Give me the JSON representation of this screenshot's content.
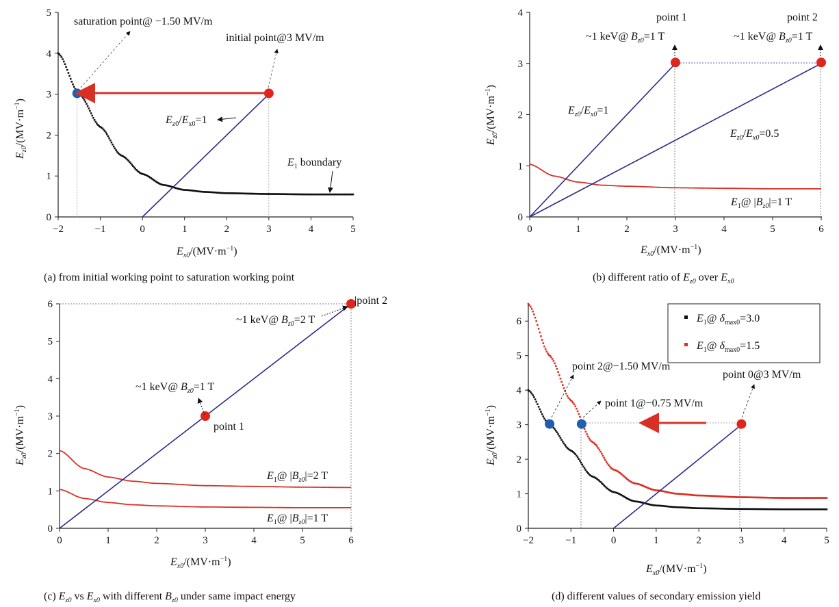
{
  "colors": {
    "axis": "#222222",
    "black_curve": "#111111",
    "red_curve": "#d93025",
    "blue_line": "#2a2a8c",
    "red_marker": "#e0261c",
    "blue_marker": "#1f5fb0",
    "guide": "#8a8aa8"
  },
  "panels": {
    "a": {
      "caption": "(a) from initial working point to saturation working point",
      "xlabel_sym": "E",
      "xlabel_sub": "x0",
      "xlabel_unit": "/(MV·m",
      "ylabel_sym": "E",
      "ylabel_sub": "z0",
      "ylabel_unit": "/(MV·m",
      "ann_saturation": "saturation point@ −1.50 MV/m",
      "ann_initial": "initial point@3 MV/m",
      "ann_ratio_sym1": "E",
      "ann_ratio_sub1": "z0",
      "ann_ratio_slash": "/",
      "ann_ratio_sym2": "E",
      "ann_ratio_sub2": "x0",
      "ann_ratio_eq": "=1",
      "ann_boundary_sym": "E",
      "ann_boundary_sub": "1",
      "ann_boundary_text": " boundary"
    },
    "b": {
      "caption_pre": "(b) different ratio of ",
      "caption_sym1": "E",
      "caption_sub1": "z0",
      "caption_mid": " over ",
      "caption_sym2": "E",
      "caption_sub2": "x0",
      "xlabel_sym": "E",
      "xlabel_sub": "x0",
      "xlabel_unit": "/(MV·m",
      "ylabel_sym": "E",
      "ylabel_sub": "z0",
      "ylabel_unit": "/(MV·m",
      "point1_title": "point 1",
      "point2_title": "point 2",
      "point_sub_pre": "~1 keV@ ",
      "point_sub_sym": "B",
      "point_sub_sub": "z0",
      "point_sub_post": "=1 T",
      "ratio1_eq": "=1",
      "ratio05_eq": "=0.5",
      "e1_label_pre": "@",
      "e1_label_b": "B",
      "e1_label_sub": "z0",
      "e1_label_post": "|=1 T"
    },
    "c": {
      "caption_pre": "(c) ",
      "caption_sym1": "E",
      "caption_sub1": "z0",
      "caption_mid1": " vs ",
      "caption_sym2": "E",
      "caption_sub2": "x0",
      "caption_mid2": " with different ",
      "caption_sym3": "B",
      "caption_sub3": "z0",
      "caption_post": " under same impact energy",
      "xlabel_sym": "E",
      "xlabel_sub": "x0",
      "xlabel_unit": "/(MV·m",
      "ylabel_sym": "E",
      "ylabel_sub": "z0",
      "ylabel_unit": "/(MV·m",
      "point1_label": "point 1",
      "point2_label": "point 2",
      "p2_energy_pre": "~1 keV@ ",
      "p2_energy_post": "=2 T",
      "p1_energy_pre": "~1 keV@ ",
      "p1_energy_post": "=1 T",
      "curve2_post": "|=2 T",
      "curve1_post": "|=1 T"
    },
    "d": {
      "caption": "(d) different values of secondary emission yield",
      "xlabel_sym": "E",
      "xlabel_sub": "x0",
      "xlabel_unit": "/(MV·m",
      "ylabel_sym": "E",
      "ylabel_sub": "z0",
      "ylabel_unit": "/(MV·m",
      "legend_delta": "δ",
      "legend_sub": "max0",
      "legend_black_val": "=3.0",
      "legend_red_val": "=1.5",
      "ann_point2": "point 2@−1.50 MV/m",
      "ann_point1": "point 1@−0.75 MV/m",
      "ann_point0": "point 0@3 MV/m"
    }
  },
  "chart_data": [
    {
      "id": "a",
      "type": "line",
      "xlim": [
        -2,
        5
      ],
      "ylim": [
        0,
        5
      ],
      "xticks": [
        "−2",
        "−1",
        "0",
        "1",
        "2",
        "3",
        "4",
        "5"
      ],
      "yticks": [
        "0",
        "1",
        "2",
        "3",
        "4",
        "5"
      ],
      "series": [
        {
          "x": [
            -2,
            -1.5,
            -1,
            -0.5,
            0,
            0.5,
            1,
            1.5,
            2,
            3,
            4,
            5
          ],
          "y": [
            4.0,
            3.0,
            2.2,
            1.5,
            1.05,
            0.78,
            0.66,
            0.61,
            0.58,
            0.56,
            0.55,
            0.55
          ]
        },
        {
          "x": [
            0,
            3
          ],
          "y": [
            0,
            3
          ]
        }
      ],
      "points": [
        {
          "x": -1.55,
          "y": 3.02,
          "color": "blue"
        },
        {
          "x": 3,
          "y": 3.02,
          "color": "red"
        }
      ]
    },
    {
      "id": "b",
      "type": "line",
      "xlim": [
        0,
        6
      ],
      "ylim": [
        0,
        4
      ],
      "xticks": [
        "0",
        "1",
        "2",
        "3",
        "4",
        "5",
        "6"
      ],
      "yticks": [
        "0",
        "1",
        "2",
        "3",
        "4"
      ],
      "series": [
        {
          "x": [
            0,
            0.5,
            1,
            1.5,
            2,
            3,
            4,
            5,
            6
          ],
          "y": [
            1.03,
            0.8,
            0.68,
            0.62,
            0.6,
            0.57,
            0.56,
            0.55,
            0.55
          ]
        },
        {
          "x": [
            0,
            3
          ],
          "y": [
            0,
            3
          ]
        },
        {
          "x": [
            0,
            6
          ],
          "y": [
            0,
            3
          ]
        }
      ],
      "points": [
        {
          "x": 3,
          "y": 3.02,
          "color": "red"
        },
        {
          "x": 6,
          "y": 3.02,
          "color": "red"
        }
      ]
    },
    {
      "id": "c",
      "type": "line",
      "xlim": [
        0,
        6
      ],
      "ylim": [
        0,
        6
      ],
      "xticks": [
        "0",
        "1",
        "2",
        "3",
        "4",
        "5",
        "6"
      ],
      "yticks": [
        "0",
        "1",
        "2",
        "3",
        "4",
        "5",
        "6"
      ],
      "series": [
        {
          "x": [
            0,
            0.5,
            1,
            1.5,
            2,
            3,
            4,
            5,
            6
          ],
          "y": [
            2.08,
            1.6,
            1.37,
            1.26,
            1.2,
            1.14,
            1.12,
            1.1,
            1.09
          ]
        },
        {
          "x": [
            0,
            0.5,
            1,
            1.5,
            2,
            3,
            4,
            5,
            6
          ],
          "y": [
            1.04,
            0.8,
            0.69,
            0.63,
            0.6,
            0.57,
            0.56,
            0.55,
            0.55
          ]
        },
        {
          "x": [
            0,
            6
          ],
          "y": [
            0,
            6
          ]
        }
      ],
      "points": [
        {
          "x": 3,
          "y": 3,
          "color": "red"
        },
        {
          "x": 6,
          "y": 6,
          "color": "red"
        }
      ]
    },
    {
      "id": "d",
      "type": "line",
      "xlim": [
        -2,
        5
      ],
      "ylim": [
        0,
        6.5
      ],
      "xticks": [
        "−2",
        "−1",
        "0",
        "1",
        "2",
        "3",
        "4",
        "5"
      ],
      "yticks": [
        "0",
        "1",
        "2",
        "3",
        "4",
        "5",
        "6"
      ],
      "series": [
        {
          "name": "E1@ δmax0=3.0",
          "x": [
            -2,
            -1.5,
            -1,
            -0.5,
            0,
            0.5,
            1,
            1.5,
            2,
            3,
            4,
            5
          ],
          "y": [
            4.0,
            3.0,
            2.25,
            1.5,
            1.05,
            0.78,
            0.66,
            0.61,
            0.58,
            0.56,
            0.55,
            0.55
          ]
        },
        {
          "name": "E1@ δmax0=1.5",
          "x": [
            -2,
            -1.5,
            -1,
            -0.5,
            0,
            0.5,
            1,
            1.5,
            2,
            3,
            4,
            5
          ],
          "y": [
            6.5,
            5.0,
            3.7,
            2.5,
            1.7,
            1.3,
            1.1,
            1.0,
            0.95,
            0.9,
            0.88,
            0.88
          ]
        },
        {
          "x": [
            0,
            3
          ],
          "y": [
            0,
            3
          ]
        }
      ],
      "points": [
        {
          "x": -1.5,
          "y": 3.02,
          "color": "blue"
        },
        {
          "x": -0.75,
          "y": 3.02,
          "color": "blue"
        },
        {
          "x": 3,
          "y": 3.02,
          "color": "red"
        }
      ]
    }
  ]
}
